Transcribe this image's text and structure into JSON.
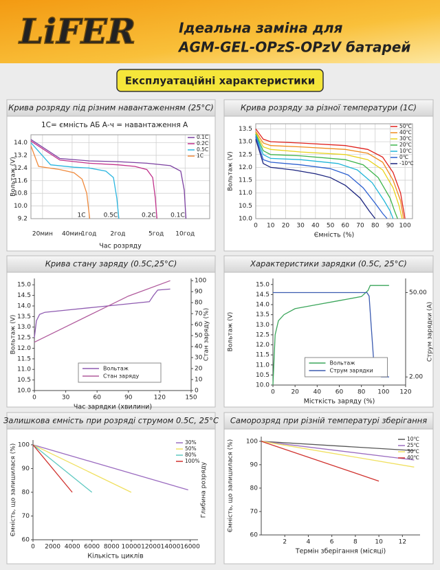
{
  "header": {
    "logo": "LiFER",
    "title_line1": "Ідеальна заміна для",
    "title_line2": "AGM-GEL-OPzS-OPzV батарей"
  },
  "section_title": "Експлуатаційні характеристики",
  "chart_data": [
    {
      "type": "line",
      "title": "Крива розряду під різним навантаженням (25°C)",
      "annotation": "1С= ємність АБ А-ч = навантаження А",
      "xlabel": "Час розряду",
      "ylabel": "Вольтаж (V)",
      "xscale": "log",
      "xlim": [
        0.25,
        18
      ],
      "xticks": [
        {
          "value": 0.33,
          "label": "20мин"
        },
        {
          "value": 0.67,
          "label": "40мин"
        },
        {
          "value": 1,
          "label": "1год"
        },
        {
          "value": 2,
          "label": "2год"
        },
        {
          "value": 5,
          "label": "5год"
        },
        {
          "value": 10,
          "label": "10год"
        }
      ],
      "ylim": [
        9.2,
        14.5
      ],
      "yticks": [
        9.2,
        {
          "value": 10,
          "label": "10.0"
        },
        10.8,
        11.6,
        12.4,
        13.2,
        {
          "value": 14,
          "label": "14.0"
        }
      ],
      "grid": true,
      "legend": "upper right",
      "end_labels": true,
      "series": [
        {
          "name": "0.1C",
          "color": "#7b3fa0",
          "x": [
            0.25,
            0.5,
            1,
            2,
            4,
            7,
            9,
            9.8,
            10.2
          ],
          "values": [
            14.2,
            13.0,
            12.85,
            12.8,
            12.7,
            12.55,
            12.2,
            11.0,
            9.2
          ]
        },
        {
          "name": "0.2C",
          "color": "#c0308a",
          "x": [
            0.25,
            0.5,
            1,
            2,
            3,
            4,
            4.6,
            4.9,
            5.1
          ],
          "values": [
            14.1,
            12.9,
            12.7,
            12.6,
            12.5,
            12.3,
            11.8,
            10.5,
            9.2
          ]
        },
        {
          "name": "0.5C",
          "color": "#29b6e0",
          "x": [
            0.25,
            0.4,
            0.7,
            1,
            1.5,
            1.8,
            1.95,
            2.05
          ],
          "values": [
            14.0,
            12.6,
            12.45,
            12.4,
            12.2,
            11.8,
            10.5,
            9.2
          ]
        },
        {
          "name": "1C",
          "color": "#f08a3c",
          "x": [
            0.25,
            0.3,
            0.5,
            0.7,
            0.85,
            0.95,
            1.02
          ],
          "values": [
            13.8,
            12.5,
            12.3,
            12.1,
            11.7,
            10.8,
            9.2
          ]
        }
      ]
    },
    {
      "type": "line",
      "title": "Крива розряду за різної температури (1С)",
      "xlabel": "Ємність (%)",
      "ylabel": "Вольтаж (V)",
      "xlim": [
        0,
        105
      ],
      "xticks": [
        0,
        10,
        20,
        30,
        40,
        50,
        60,
        70,
        80,
        90,
        100
      ],
      "ylim": [
        10,
        13.7
      ],
      "yticks": [
        {
          "value": 10,
          "label": "10.0"
        },
        10.5,
        {
          "value": 11,
          "label": "11.0"
        },
        11.5,
        {
          "value": 12,
          "label": "12.0"
        },
        12.5,
        {
          "value": 13,
          "label": "13.0"
        },
        13.5
      ],
      "grid": true,
      "legend": "upper right",
      "series": [
        {
          "name": "50℃",
          "color": "#e0201b",
          "x": [
            0,
            5,
            10,
            30,
            60,
            75,
            85,
            92,
            97,
            100
          ],
          "values": [
            13.5,
            13.1,
            13.0,
            12.95,
            12.85,
            12.7,
            12.4,
            11.8,
            11.0,
            10.0
          ]
        },
        {
          "name": "40℃",
          "color": "#f08a1c",
          "x": [
            0,
            5,
            10,
            30,
            60,
            75,
            85,
            92,
            97,
            99
          ],
          "values": [
            13.4,
            12.95,
            12.85,
            12.8,
            12.7,
            12.55,
            12.2,
            11.5,
            10.7,
            10.0
          ]
        },
        {
          "name": "30℃",
          "color": "#e8d21a",
          "x": [
            0,
            5,
            10,
            30,
            60,
            75,
            85,
            92,
            96,
            98
          ],
          "values": [
            13.35,
            12.8,
            12.7,
            12.6,
            12.5,
            12.3,
            11.9,
            11.2,
            10.5,
            10.0
          ]
        },
        {
          "name": "20℃",
          "color": "#3cb44a",
          "x": [
            0,
            5,
            10,
            30,
            60,
            72,
            82,
            90,
            93,
            95
          ],
          "values": [
            13.3,
            12.65,
            12.5,
            12.45,
            12.3,
            12.1,
            11.6,
            10.8,
            10.3,
            10.0
          ]
        },
        {
          "name": "10℃",
          "color": "#1fb5d8",
          "x": [
            0,
            5,
            10,
            30,
            55,
            68,
            78,
            86,
            90,
            92
          ],
          "values": [
            13.25,
            12.5,
            12.35,
            12.3,
            12.15,
            11.9,
            11.4,
            10.7,
            10.3,
            10.0
          ]
        },
        {
          "name": "0℃",
          "color": "#2b5fd0",
          "x": [
            0,
            5,
            10,
            30,
            50,
            62,
            72,
            80,
            85,
            88
          ],
          "values": [
            13.2,
            12.3,
            12.2,
            12.1,
            11.95,
            11.7,
            11.2,
            10.6,
            10.2,
            10.0
          ]
        },
        {
          "name": "-10℃",
          "color": "#1a237e",
          "x": [
            0,
            5,
            10,
            25,
            40,
            50,
            60,
            70,
            76,
            80
          ],
          "values": [
            13.1,
            12.15,
            12.0,
            11.9,
            11.75,
            11.6,
            11.3,
            10.8,
            10.3,
            10.0
          ]
        }
      ]
    },
    {
      "type": "line",
      "title": "Крива стану заряду (0.5C,25°C)",
      "xlabel": "Час зарядки (хвилини)",
      "ylabel": "Вольтаж (V)",
      "y2label": "Стан заряду (%)",
      "xlim": [
        0,
        150
      ],
      "xticks": [
        0,
        30,
        60,
        90,
        120,
        150
      ],
      "ylim": [
        10,
        15.3
      ],
      "yticks": [
        {
          "value": 10,
          "label": "10.0"
        },
        10.5,
        {
          "value": 11,
          "label": "11.0"
        },
        11.5,
        {
          "value": 12,
          "label": "12.0"
        },
        12.5,
        {
          "value": 13,
          "label": "13.0"
        },
        13.5,
        {
          "value": 14,
          "label": "14.0"
        },
        14.5,
        {
          "value": 15,
          "label": "15.0"
        }
      ],
      "y2lim": [
        0,
        102
      ],
      "y2ticks": [
        0,
        10,
        20,
        30,
        40,
        50,
        60,
        70,
        80,
        90,
        100
      ],
      "grid": false,
      "legend": "lower center",
      "series": [
        {
          "name": "Вольтаж",
          "color": "#8e5ab0",
          "x": [
            0,
            2,
            5,
            10,
            30,
            60,
            90,
            110,
            114,
            118,
            130
          ],
          "values": [
            12.5,
            13.3,
            13.6,
            13.7,
            13.8,
            13.95,
            14.1,
            14.2,
            14.5,
            14.75,
            14.8
          ]
        },
        {
          "name": "Стан заряду",
          "color": "#b05a9c",
          "axis": "y2",
          "x": [
            0,
            30,
            60,
            90,
            130
          ],
          "values": [
            44,
            58,
            72,
            86,
            100
          ]
        }
      ]
    },
    {
      "type": "line",
      "title": "Характеристики зарядки (0.5C, 25°C)",
      "xlabel": "Місткість заряду (%)",
      "ylabel": "Вольтаж (V)",
      "y2label": "Струм зарядки (A)",
      "xlim": [
        0,
        120
      ],
      "xticks": [
        0,
        20,
        40,
        60,
        80,
        100,
        120
      ],
      "ylim": [
        10,
        15.3
      ],
      "yticks": [
        {
          "value": 10,
          "label": "10.0"
        },
        10.5,
        {
          "value": 11,
          "label": "11.0"
        },
        11.5,
        {
          "value": 12,
          "label": "12.0"
        },
        12.5,
        {
          "value": 13,
          "label": "13.0"
        },
        13.5,
        {
          "value": 14,
          "label": "14.0"
        },
        14.5,
        {
          "value": 15,
          "label": "15.0"
        }
      ],
      "y2lim": [
        -2.6,
        58
      ],
      "y2ticks": [
        {
          "value": 2,
          "label": "2.00"
        },
        {
          "value": 50,
          "label": "50.00"
        }
      ],
      "grid": false,
      "legend": "lower center",
      "series": [
        {
          "name": "Вольтаж",
          "color": "#3aa55a",
          "x": [
            0,
            2,
            5,
            10,
            20,
            40,
            60,
            80,
            86,
            88,
            105
          ],
          "values": [
            10.0,
            12.5,
            13.2,
            13.5,
            13.8,
            14.0,
            14.2,
            14.4,
            14.7,
            14.95,
            14.95
          ]
        },
        {
          "name": "Струм зарядки",
          "color": "#3a5ab0",
          "axis": "y2",
          "x": [
            0,
            85,
            87,
            89,
            91,
            94,
            98,
            105
          ],
          "values": [
            50,
            50,
            48,
            30,
            12,
            4,
            2,
            2
          ]
        }
      ]
    },
    {
      "type": "line",
      "title": "Залишкова ємність при розряді струмом 0.5C, 25°C",
      "xlabel": "Кількість циклів",
      "ylabel": "Ємність, що залишилася (%)",
      "y2label": "Глибина розряду",
      "xlim": [
        0,
        16800
      ],
      "xticks": [
        0,
        2000,
        4000,
        6000,
        8000,
        10000,
        12000,
        14000,
        16000
      ],
      "ylim": [
        60,
        102
      ],
      "yticks": [
        60,
        70,
        80,
        90,
        100
      ],
      "grid": false,
      "legend": "upper right",
      "series": [
        {
          "name": "30%",
          "color": "#9b6cc0",
          "x": [
            0,
            15800
          ],
          "values": [
            100,
            81
          ]
        },
        {
          "name": "50%",
          "color": "#f0e060",
          "x": [
            0,
            10000
          ],
          "values": [
            100,
            80
          ]
        },
        {
          "name": "80%",
          "color": "#5cc8c0",
          "x": [
            0,
            6000
          ],
          "values": [
            100,
            80
          ]
        },
        {
          "name": "100%",
          "color": "#d0312d",
          "x": [
            0,
            4000
          ],
          "values": [
            100,
            80
          ]
        }
      ]
    },
    {
      "type": "line",
      "title": "Саморозряд при різній температурі зберігання",
      "xlabel": "Термін зберігання (місяці)",
      "ylabel": "Ємність, що залишилася (%)",
      "xlim": [
        0,
        13.5
      ],
      "xticks": [
        2,
        4,
        6,
        8,
        10,
        12
      ],
      "ylim": [
        60,
        102
      ],
      "yticks": [
        60,
        70,
        80,
        90,
        100
      ],
      "grid": false,
      "legend": "upper right",
      "series": [
        {
          "name": "10℃",
          "color": "#555555",
          "x": [
            0,
            13
          ],
          "values": [
            100,
            96
          ]
        },
        {
          "name": "25℃",
          "color": "#9b6cc0",
          "x": [
            0,
            13
          ],
          "values": [
            100,
            92
          ]
        },
        {
          "name": "30℃",
          "color": "#f0e060",
          "x": [
            0,
            13
          ],
          "values": [
            100,
            89
          ]
        },
        {
          "name": "40℃",
          "color": "#d0312d",
          "x": [
            0,
            10
          ],
          "values": [
            100,
            83
          ]
        }
      ]
    }
  ]
}
